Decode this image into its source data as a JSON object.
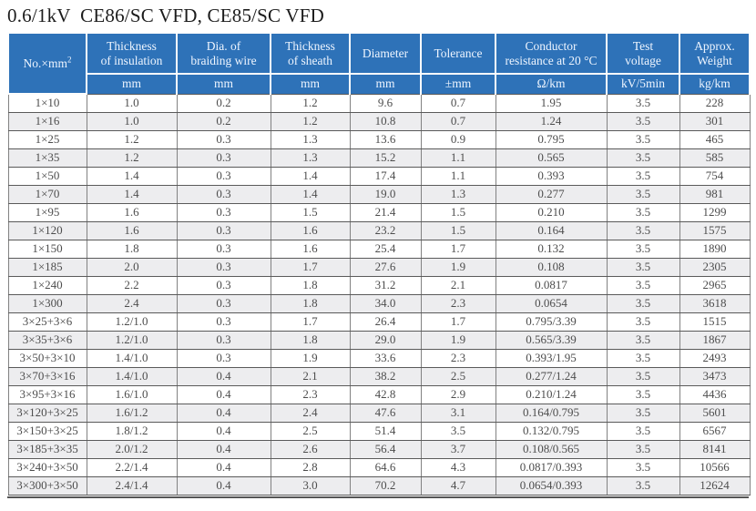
{
  "title": "0.6/1kV  CE86/SC VFD, CE85/SC VFD",
  "colors": {
    "header_bg": "#2e72b8",
    "header_text": "#eef5ff",
    "row_alt_bg": "#ededef",
    "grid_vertical": "#828282",
    "grid_horizontal": "#5a5a5a",
    "body_text": "#4d4d4d"
  },
  "table": {
    "col1": {
      "base": "No.×mm",
      "sup": "2"
    },
    "columns": [
      {
        "label": "Thickness\nof insulation",
        "unit": "mm"
      },
      {
        "label": "Dia. of\nbraiding wire",
        "unit": "mm"
      },
      {
        "label": "Thickness\nof sheath",
        "unit": "mm"
      },
      {
        "label": "Diameter",
        "unit": "mm"
      },
      {
        "label": "Tolerance",
        "unit": "±mm"
      },
      {
        "label": "Conductor\nresistance at 20 °C",
        "unit": "Ω/km"
      },
      {
        "label": "Test\nvoltage",
        "unit": "kV/5min"
      },
      {
        "label": "Approx.\nWeight",
        "unit": "kg/km"
      }
    ],
    "rows": [
      [
        "1×10",
        "1.0",
        "0.2",
        "1.2",
        "9.6",
        "0.7",
        "1.95",
        "3.5",
        "228"
      ],
      [
        "1×16",
        "1.0",
        "0.2",
        "1.2",
        "10.8",
        "0.7",
        "1.24",
        "3.5",
        "301"
      ],
      [
        "1×25",
        "1.2",
        "0.3",
        "1.3",
        "13.6",
        "0.9",
        "0.795",
        "3.5",
        "465"
      ],
      [
        "1×35",
        "1.2",
        "0.3",
        "1.3",
        "15.2",
        "1.1",
        "0.565",
        "3.5",
        "585"
      ],
      [
        "1×50",
        "1.4",
        "0.3",
        "1.4",
        "17.4",
        "1.1",
        "0.393",
        "3.5",
        "754"
      ],
      [
        "1×70",
        "1.4",
        "0.3",
        "1.4",
        "19.0",
        "1.3",
        "0.277",
        "3.5",
        "981"
      ],
      [
        "1×95",
        "1.6",
        "0.3",
        "1.5",
        "21.4",
        "1.5",
        "0.210",
        "3.5",
        "1299"
      ],
      [
        "1×120",
        "1.6",
        "0.3",
        "1.6",
        "23.2",
        "1.5",
        "0.164",
        "3.5",
        "1575"
      ],
      [
        "1×150",
        "1.8",
        "0.3",
        "1.6",
        "25.4",
        "1.7",
        "0.132",
        "3.5",
        "1890"
      ],
      [
        "1×185",
        "2.0",
        "0.3",
        "1.7",
        "27.6",
        "1.9",
        "0.108",
        "3.5",
        "2305"
      ],
      [
        "1×240",
        "2.2",
        "0.3",
        "1.8",
        "31.2",
        "2.1",
        "0.0817",
        "3.5",
        "2965"
      ],
      [
        "1×300",
        "2.4",
        "0.3",
        "1.8",
        "34.0",
        "2.3",
        "0.0654",
        "3.5",
        "3618"
      ],
      [
        "3×25+3×6",
        "1.2/1.0",
        "0.3",
        "1.7",
        "26.4",
        "1.7",
        "0.795/3.39",
        "3.5",
        "1515"
      ],
      [
        "3×35+3×6",
        "1.2/1.0",
        "0.3",
        "1.8",
        "29.0",
        "1.9",
        "0.565/3.39",
        "3.5",
        "1867"
      ],
      [
        "3×50+3×10",
        "1.4/1.0",
        "0.3",
        "1.9",
        "33.6",
        "2.3",
        "0.393/1.95",
        "3.5",
        "2493"
      ],
      [
        "3×70+3×16",
        "1.4/1.0",
        "0.4",
        "2.1",
        "38.2",
        "2.5",
        "0.277/1.24",
        "3.5",
        "3473"
      ],
      [
        "3×95+3×16",
        "1.6/1.0",
        "0.4",
        "2.3",
        "42.8",
        "2.9",
        "0.210/1.24",
        "3.5",
        "4436"
      ],
      [
        "3×120+3×25",
        "1.6/1.2",
        "0.4",
        "2.4",
        "47.6",
        "3.1",
        "0.164/0.795",
        "3.5",
        "5601"
      ],
      [
        "3×150+3×25",
        "1.8/1.2",
        "0.4",
        "2.5",
        "51.4",
        "3.5",
        "0.132/0.795",
        "3.5",
        "6567"
      ],
      [
        "3×185+3×35",
        "2.0/1.2",
        "0.4",
        "2.6",
        "56.4",
        "3.7",
        "0.108/0.565",
        "3.5",
        "8141"
      ],
      [
        "3×240+3×50",
        "2.2/1.4",
        "0.4",
        "2.8",
        "64.6",
        "4.3",
        "0.0817/0.393",
        "3.5",
        "10566"
      ],
      [
        "3×300+3×50",
        "2.4/1.4",
        "0.4",
        "3.0",
        "70.2",
        "4.7",
        "0.0654/0.393",
        "3.5",
        "12624"
      ]
    ]
  }
}
